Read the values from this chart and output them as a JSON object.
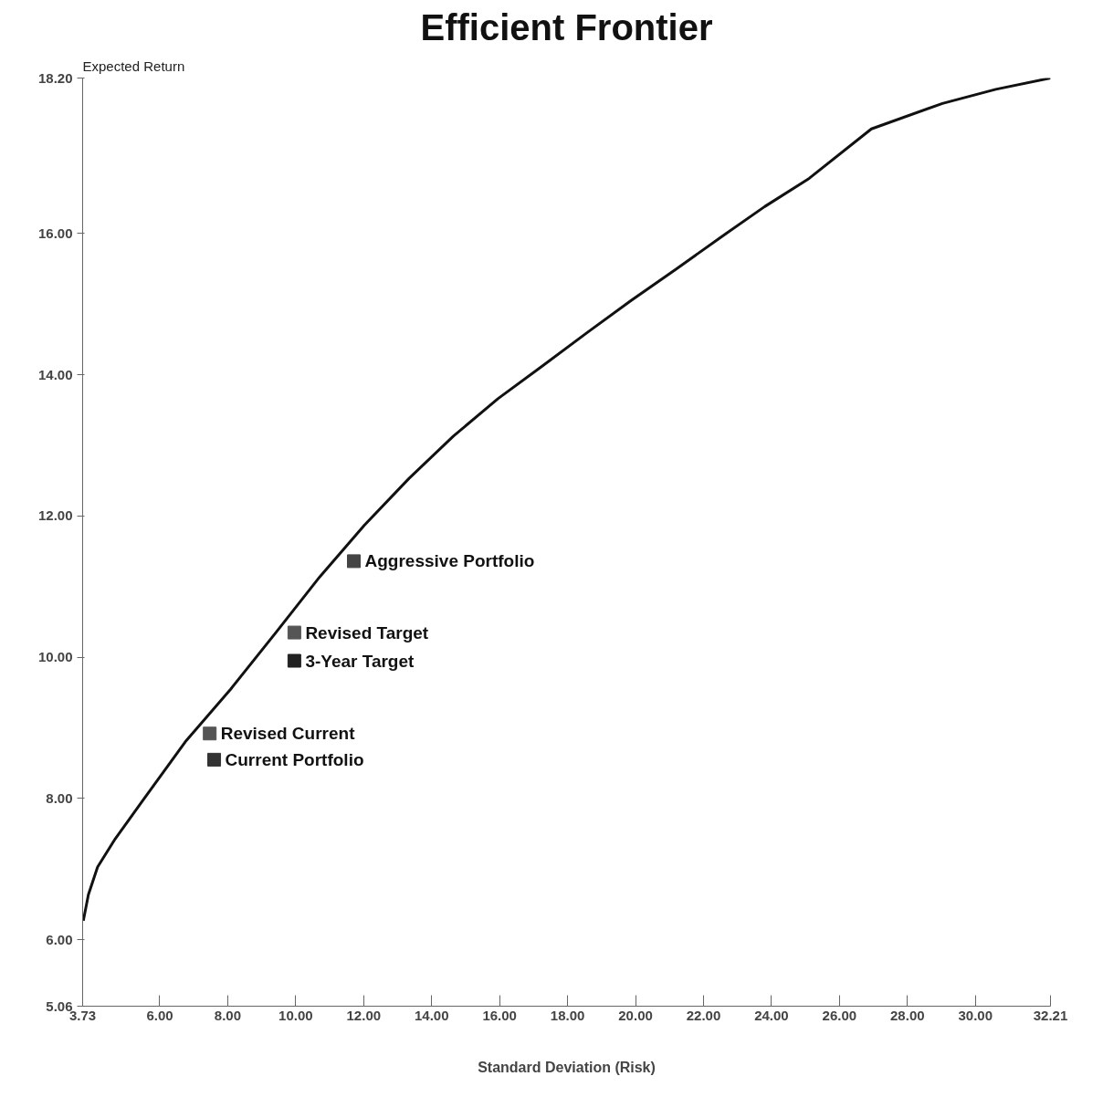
{
  "chart_data": {
    "type": "scatter",
    "title": "Efficient Frontier",
    "xlabel": "Standard Deviation (Risk)",
    "ylabel": "Expected Return",
    "xlim": [
      3.73,
      32.21
    ],
    "ylim": [
      5.06,
      18.2
    ],
    "xticks": [
      {
        "value": 3.73,
        "label": "3.73"
      },
      {
        "value": 6,
        "label": "6.00"
      },
      {
        "value": 8,
        "label": "8.00"
      },
      {
        "value": 10,
        "label": "10.00"
      },
      {
        "value": 12,
        "label": "12.00"
      },
      {
        "value": 14,
        "label": "14.00"
      },
      {
        "value": 16,
        "label": "16.00"
      },
      {
        "value": 18,
        "label": "18.00"
      },
      {
        "value": 20,
        "label": "20.00"
      },
      {
        "value": 22,
        "label": "22.00"
      },
      {
        "value": 24,
        "label": "24.00"
      },
      {
        "value": 26,
        "label": "26.00"
      },
      {
        "value": 28,
        "label": "28.00"
      },
      {
        "value": 30,
        "label": "30.00"
      },
      {
        "value": 32.21,
        "label": "32.21"
      }
    ],
    "yticks": [
      {
        "value": 5.06,
        "label": "5.06"
      },
      {
        "value": 6,
        "label": "6.00"
      },
      {
        "value": 8,
        "label": "8.00"
      },
      {
        "value": 10,
        "label": "10.00"
      },
      {
        "value": 12,
        "label": "12.00"
      },
      {
        "value": 14,
        "label": "14.00"
      },
      {
        "value": 16,
        "label": "16.00"
      },
      {
        "value": 18.2,
        "label": "18.20"
      }
    ],
    "grid": false,
    "series": [
      {
        "type": "line",
        "color": "#111111",
        "line_style": "solid",
        "x": [
          3.75,
          3.9,
          4.17,
          4.69,
          5.48,
          6.78,
          8.09,
          9.4,
          10.71,
          12.02,
          13.33,
          14.64,
          15.95,
          17.25,
          18.56,
          19.87,
          21.18,
          22.49,
          23.8,
          25.11,
          26.94,
          29.03,
          30.6,
          32.21
        ],
        "values": [
          6.27,
          6.64,
          7.03,
          7.43,
          7.96,
          8.82,
          9.55,
          10.34,
          11.14,
          11.87,
          12.53,
          13.13,
          13.66,
          14.12,
          14.59,
          15.05,
          15.49,
          15.94,
          16.38,
          16.78,
          17.48,
          17.84,
          18.04,
          18.2
        ]
      },
      {
        "name": "Aggressive Portfolio",
        "color": "#444444",
        "marker": "square",
        "x": [
          11.71
        ],
        "values": [
          11.36
        ]
      },
      {
        "name": "Revised Target",
        "color": "#555555",
        "marker": "square",
        "x": [
          9.96
        ],
        "values": [
          10.35
        ]
      },
      {
        "name": "3-Year Target",
        "color": "#222222",
        "marker": "square",
        "x": [
          9.96
        ],
        "values": [
          9.95
        ]
      },
      {
        "name": "Revised Current",
        "color": "#555555",
        "marker": "square",
        "x": [
          7.47
        ],
        "values": [
          8.92
        ]
      },
      {
        "name": "Current Portfolio",
        "color": "#333333",
        "marker": "square",
        "x": [
          7.6
        ],
        "values": [
          8.55
        ]
      }
    ]
  }
}
